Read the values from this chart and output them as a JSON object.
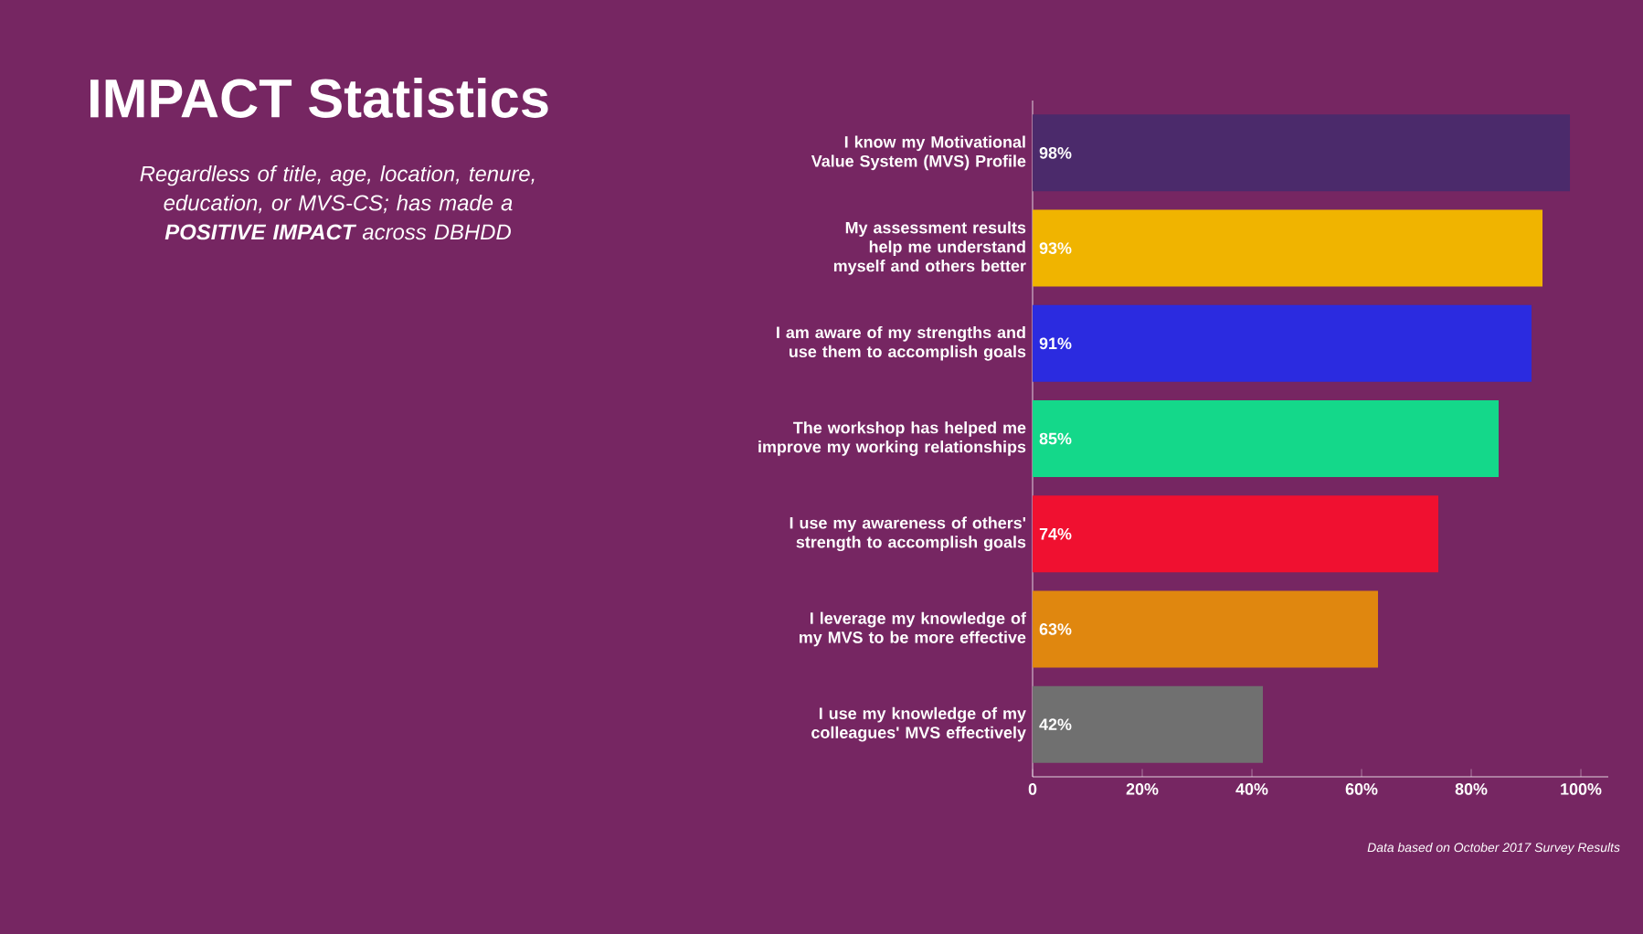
{
  "chart_data": {
    "type": "bar",
    "orientation": "horizontal",
    "title": "IMPACT Statistics",
    "subtitle": "Regardless of title, age, location, tenure, education, or MVS-CS; has made a **POSITIVE IMPACT** across DBHDD",
    "categories": [
      "I know my Motivational Value System (MVS) Profile",
      "My assessment results help me understand myself and others better",
      "I am aware of my strengths and use them to accomplish goals",
      "The workshop has helped me improve my working relationships",
      "I use my awareness of others' strength to accomplish goals",
      "I leverage my knowledge of my MVS to be more effective",
      "I use my knowledge of my colleagues' MVS effectively"
    ],
    "values": [
      98,
      93,
      91,
      85,
      74,
      63,
      42
    ],
    "value_labels": [
      "98%",
      "93%",
      "91%",
      "85%",
      "74%",
      "63%",
      "42%"
    ],
    "colors": [
      "#4b2a6b",
      "#f0b400",
      "#2b2be0",
      "#14d88a",
      "#f01030",
      "#e0870f",
      "#707070"
    ],
    "xlim": [
      0,
      105
    ],
    "xticks": [
      0,
      {
        "value": 20,
        "label": "20%"
      },
      {
        "value": 40,
        "label": "40%"
      },
      {
        "value": 60,
        "label": "60%"
      },
      {
        "value": 80,
        "label": "80%"
      },
      {
        "value": 100,
        "label": "100%"
      }
    ],
    "annotations": [
      "Data based on October 2017 Survey Results"
    ]
  }
}
